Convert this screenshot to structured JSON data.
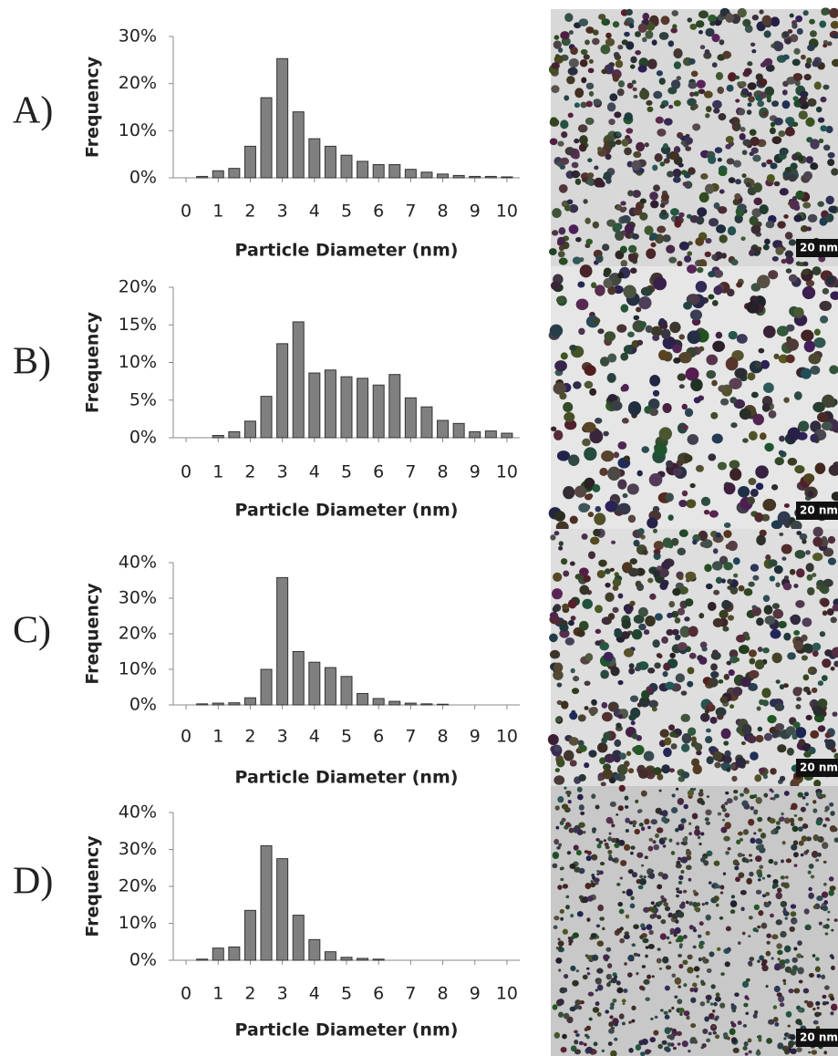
{
  "chart_data": [
    {
      "type": "bar",
      "panel_label": "A)",
      "y_label": "Frequency",
      "x_label": "Particle Diameter (nm)",
      "image_scale_bar": "20 nm",
      "color": "#808080",
      "x": [
        0.5,
        1,
        1.5,
        2,
        2.5,
        3,
        3.5,
        4,
        4.5,
        5,
        5.5,
        6,
        6.5,
        7,
        7.5,
        8,
        8.5,
        9,
        9.5,
        10
      ],
      "values": [
        0.3,
        1.5,
        2,
        6.7,
        17,
        25.3,
        14,
        8.3,
        6.7,
        4.8,
        3.5,
        2.8,
        2.8,
        1.8,
        1.2,
        0.8,
        0.5,
        0.3,
        0.3,
        0.2
      ],
      "xlim": [
        -0.4,
        10.4
      ],
      "xticks": [
        0,
        1,
        2,
        3,
        4,
        5,
        6,
        7,
        8,
        9,
        10
      ],
      "ylim": [
        0,
        30
      ],
      "yticks": [
        {
          "value": 0,
          "label": "0%"
        },
        {
          "value": 10,
          "label": "10%"
        },
        {
          "value": 20,
          "label": "20%"
        },
        {
          "value": 30,
          "label": "30%"
        }
      ]
    },
    {
      "type": "bar",
      "panel_label": "B)",
      "y_label": "Frequency",
      "x_label": "Particle Diameter (nm)",
      "image_scale_bar": "20 nm",
      "color": "#808080",
      "x": [
        0.5,
        1,
        1.5,
        2,
        2.5,
        3,
        3.5,
        4,
        4.5,
        5,
        5.5,
        6,
        6.5,
        7,
        7.5,
        8,
        8.5,
        9,
        9.5,
        10
      ],
      "values": [
        0,
        0.3,
        0.8,
        2.2,
        5.5,
        12.5,
        15.4,
        8.6,
        9,
        8.1,
        7.9,
        7,
        8.4,
        5.3,
        4.1,
        2.3,
        1.9,
        0.8,
        0.9,
        0.6
      ],
      "xlim": [
        -0.4,
        10.4
      ],
      "xticks": [
        0,
        1,
        2,
        3,
        4,
        5,
        6,
        7,
        8,
        9,
        10
      ],
      "ylim": [
        0,
        20
      ],
      "yticks": [
        {
          "value": 0,
          "label": "0%"
        },
        {
          "value": 5,
          "label": "5%"
        },
        {
          "value": 10,
          "label": "10%"
        },
        {
          "value": 15,
          "label": "15%"
        },
        {
          "value": 20,
          "label": "20%"
        }
      ]
    },
    {
      "type": "bar",
      "panel_label": "C)",
      "y_label": "Frequency",
      "x_label": "Particle Diameter (nm)",
      "image_scale_bar": "20 nm",
      "color": "#808080",
      "x": [
        0.5,
        1,
        1.5,
        2,
        2.5,
        3,
        3.5,
        4,
        4.5,
        5,
        5.5,
        6,
        6.5,
        7,
        7.5,
        8,
        8.5,
        9,
        9.5,
        10
      ],
      "values": [
        0.3,
        0.5,
        0.6,
        2,
        10,
        35.8,
        15,
        12,
        10.5,
        8,
        3.2,
        1.8,
        1,
        0.5,
        0.3,
        0.2,
        0,
        0,
        0,
        0
      ],
      "xlim": [
        -0.4,
        10.4
      ],
      "xticks": [
        0,
        1,
        2,
        3,
        4,
        5,
        6,
        7,
        8,
        9,
        10
      ],
      "ylim": [
        0,
        40
      ],
      "yticks": [
        {
          "value": 0,
          "label": "0%"
        },
        {
          "value": 10,
          "label": "10%"
        },
        {
          "value": 20,
          "label": "20%"
        },
        {
          "value": 30,
          "label": "30%"
        },
        {
          "value": 40,
          "label": "40%"
        }
      ]
    },
    {
      "type": "bar",
      "panel_label": "D)",
      "y_label": "Frequency",
      "x_label": "Particle Diameter (nm)",
      "image_scale_bar": "20 nm",
      "color": "#808080",
      "x": [
        0.5,
        1,
        1.5,
        2,
        2.5,
        3,
        3.5,
        4,
        4.5,
        5,
        5.5,
        6,
        6.5,
        7,
        7.5,
        8,
        8.5,
        9,
        9.5,
        10
      ],
      "values": [
        0.3,
        3.3,
        3.6,
        13.5,
        31,
        27.5,
        12.2,
        5.6,
        2.3,
        0.8,
        0.5,
        0.3,
        0,
        0,
        0,
        0,
        0,
        0,
        0,
        0
      ],
      "xlim": [
        -0.4,
        10.4
      ],
      "xticks": [
        0,
        1,
        2,
        3,
        4,
        5,
        6,
        7,
        8,
        9,
        10
      ],
      "ylim": [
        0,
        40
      ],
      "yticks": [
        {
          "value": 0,
          "label": "0%"
        },
        {
          "value": 10,
          "label": "10%"
        },
        {
          "value": 20,
          "label": "20%"
        },
        {
          "value": 30,
          "label": "30%"
        },
        {
          "value": 40,
          "label": "40%"
        }
      ]
    }
  ]
}
